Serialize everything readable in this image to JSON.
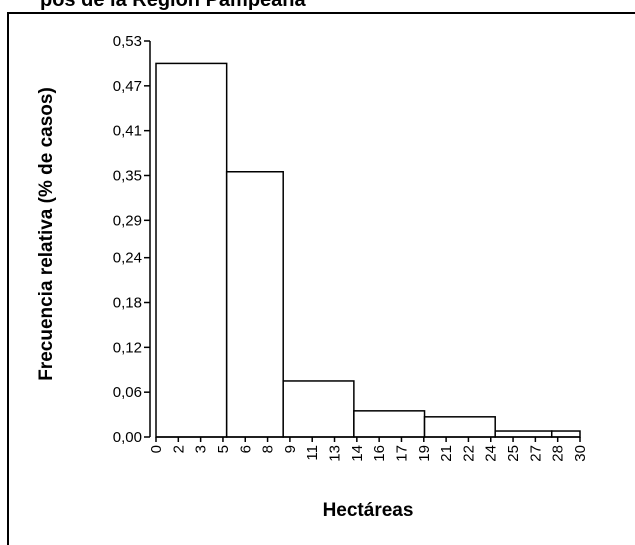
{
  "figure": {
    "title": "pos de la Region Pampeana"
  },
  "chart_data": {
    "type": "bar",
    "title": "pos de la Region Pampeana",
    "xlabel": "Hectáreas",
    "ylabel": "Frecuencia relativa (% de casos)",
    "ylim": [
      0,
      0.53
    ],
    "y_ticks": [
      "0,00",
      "0,06",
      "0,12",
      "0,18",
      "0,24",
      "0,29",
      "0,35",
      "0,41",
      "0,47",
      "0,53"
    ],
    "x_ticks": [
      "0",
      "2",
      "3",
      "5",
      "6",
      "8",
      "9",
      "11",
      "13",
      "14",
      "16",
      "17",
      "19",
      "21",
      "22",
      "24",
      "25",
      "27",
      "28",
      "30"
    ],
    "bins": [
      {
        "from": 0,
        "to": 5,
        "value": 0.5
      },
      {
        "from": 5,
        "to": 9,
        "value": 0.355
      },
      {
        "from": 9,
        "to": 14,
        "value": 0.075
      },
      {
        "from": 14,
        "to": 19,
        "value": 0.035
      },
      {
        "from": 19,
        "to": 24,
        "value": 0.027
      },
      {
        "from": 24,
        "to": 28,
        "value": 0.008
      },
      {
        "from": 28,
        "to": 30,
        "value": 0.008
      }
    ],
    "grid": false,
    "legend": "none",
    "bar_fill": "#ffffff",
    "bar_stroke": "#000000"
  }
}
